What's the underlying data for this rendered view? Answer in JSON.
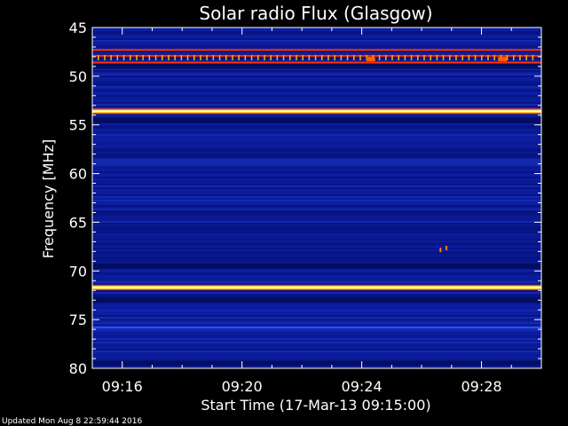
{
  "chart_data": {
    "type": "heatmap",
    "title": "Solar radio Flux (Glasgow)",
    "xlabel": "Start Time (17-Mar-13 09:15:00)",
    "ylabel": "Frequency [MHz]",
    "x_tick_labels": [
      "09:16",
      "09:20",
      "09:24",
      "09:28"
    ],
    "x_tick_minutes": [
      1,
      5,
      9,
      13
    ],
    "x_range_minutes": [
      0,
      15
    ],
    "y_tick_labels": [
      "45",
      "50",
      "55",
      "60",
      "65",
      "70",
      "75",
      "80"
    ],
    "y_tick_values": [
      45,
      50,
      55,
      60,
      65,
      70,
      75,
      80
    ],
    "y_range": [
      45,
      80
    ],
    "y_inverted": true,
    "colormap": [
      "#000033",
      "#001a8c",
      "#0a2ab4",
      "#ff2000",
      "#ffc000",
      "#ffffe0"
    ],
    "background_color": "#0a1a96",
    "bright_bands_mhz": [
      {
        "freq": 47.3,
        "intensity": 0.85
      },
      {
        "freq": 47.9,
        "intensity": 0.75
      },
      {
        "freq": 48.6,
        "intensity": 0.7
      },
      {
        "freq": 53.6,
        "intensity": 1.0
      },
      {
        "freq": 71.7,
        "intensity": 1.0
      },
      {
        "freq": 75.8,
        "intensity": 0.35
      }
    ],
    "dark_bands_mhz": [
      49.0,
      54.5,
      69.5,
      73.0,
      79.5
    ]
  },
  "footer": {
    "updated_text": "Updated Mon Aug  8 22:59:44 2016"
  }
}
